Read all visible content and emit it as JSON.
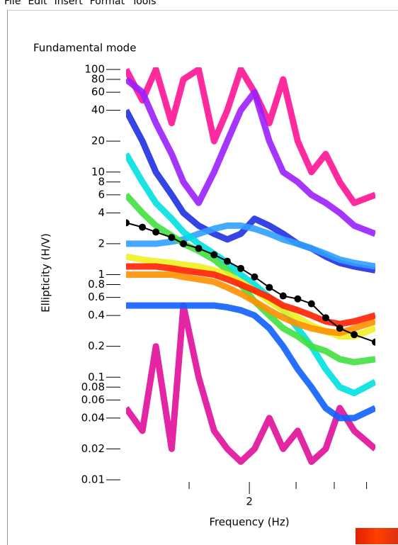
{
  "menu": [
    "File",
    "Edit",
    "Insert",
    "Format",
    "Tools"
  ],
  "chart_data": {
    "type": "line",
    "title": "Fundamental mode",
    "xlabel": "Frequency (Hz)",
    "ylabel": "Ellipticity (H/V)",
    "xscale": "log",
    "yscale": "log",
    "xlim": [
      1.11,
      3.65
    ],
    "ylim": [
      0.01,
      100
    ],
    "xticks": [
      2
    ],
    "xminorticks": [
      1.5,
      2.5,
      3,
      3.5
    ],
    "yticks": [
      100,
      80,
      60,
      40,
      20,
      10,
      8,
      6,
      4,
      2,
      1,
      0.8,
      0.6,
      0.4,
      0.2,
      0.1,
      0.08,
      0.06,
      0.04,
      0.02,
      0.01
    ],
    "x": [
      1.11,
      1.2,
      1.28,
      1.38,
      1.46,
      1.57,
      1.69,
      1.8,
      1.92,
      2.05,
      2.2,
      2.35,
      2.52,
      2.69,
      2.88,
      3.08,
      3.3,
      3.65
    ],
    "series": [
      {
        "color": "#ff1493",
        "values": [
          100,
          50,
          100,
          30,
          80,
          100,
          20,
          40,
          100,
          60,
          30,
          80,
          20,
          10,
          15,
          8,
          5,
          6
        ]
      },
      {
        "color": "#e0109a",
        "values": [
          0.05,
          0.03,
          0.2,
          0.02,
          0.5,
          0.1,
          0.03,
          0.02,
          0.015,
          0.02,
          0.04,
          0.02,
          0.03,
          0.015,
          0.02,
          0.05,
          0.03,
          0.02
        ]
      },
      {
        "color": "#9a20ff",
        "values": [
          80,
          60,
          30,
          15,
          8,
          5,
          10,
          20,
          40,
          60,
          20,
          10,
          8,
          6,
          5,
          4,
          3,
          2.5
        ]
      },
      {
        "color": "#2030e0",
        "values": [
          40,
          20,
          10,
          6,
          4,
          3,
          2.5,
          2.2,
          2.5,
          3.5,
          3,
          2.5,
          2,
          1.8,
          1.5,
          1.3,
          1.2,
          1.1
        ]
      },
      {
        "color": "#1060ff",
        "values": [
          0.5,
          0.5,
          0.5,
          0.5,
          0.5,
          0.5,
          0.5,
          0.48,
          0.45,
          0.4,
          0.3,
          0.2,
          0.12,
          0.08,
          0.05,
          0.04,
          0.04,
          0.05
        ]
      },
      {
        "color": "#30a0ff",
        "values": [
          2,
          2,
          2,
          2.1,
          2.2,
          2.5,
          2.8,
          3,
          3,
          2.8,
          2.5,
          2.2,
          2,
          1.8,
          1.6,
          1.4,
          1.3,
          1.2
        ]
      },
      {
        "color": "#00e0e0",
        "values": [
          15,
          8,
          5,
          3.5,
          2.6,
          2,
          1.6,
          1.3,
          1,
          0.8,
          0.6,
          0.45,
          0.3,
          0.2,
          0.12,
          0.08,
          0.07,
          0.09
        ]
      },
      {
        "color": "#40e040",
        "values": [
          6,
          4,
          3,
          2.4,
          2,
          1.7,
          1.4,
          1.1,
          0.8,
          0.55,
          0.4,
          0.3,
          0.25,
          0.2,
          0.18,
          0.15,
          0.14,
          0.15
        ]
      },
      {
        "color": "#f0f020",
        "values": [
          1.5,
          1.4,
          1.35,
          1.3,
          1.25,
          1.2,
          1.1,
          1,
          0.85,
          0.7,
          0.55,
          0.45,
          0.38,
          0.32,
          0.28,
          0.25,
          0.25,
          0.3
        ]
      },
      {
        "color": "#ff9000",
        "values": [
          1,
          1,
          1,
          1,
          0.95,
          0.9,
          0.85,
          0.75,
          0.65,
          0.55,
          0.45,
          0.38,
          0.33,
          0.3,
          0.28,
          0.27,
          0.3,
          0.35
        ]
      },
      {
        "color": "#ff2000",
        "values": [
          1.2,
          1.2,
          1.2,
          1.15,
          1.1,
          1.05,
          1,
          0.9,
          0.8,
          0.7,
          0.6,
          0.5,
          0.45,
          0.4,
          0.35,
          0.33,
          0.35,
          0.4
        ]
      }
    ],
    "target": {
      "color": "#000000",
      "values": [
        3.2,
        2.9,
        2.6,
        2.3,
        2,
        1.8,
        1.56,
        1.35,
        1.15,
        0.95,
        0.75,
        0.62,
        0.58,
        0.52,
        0.38,
        0.3,
        0.26,
        0.22
      ]
    }
  }
}
